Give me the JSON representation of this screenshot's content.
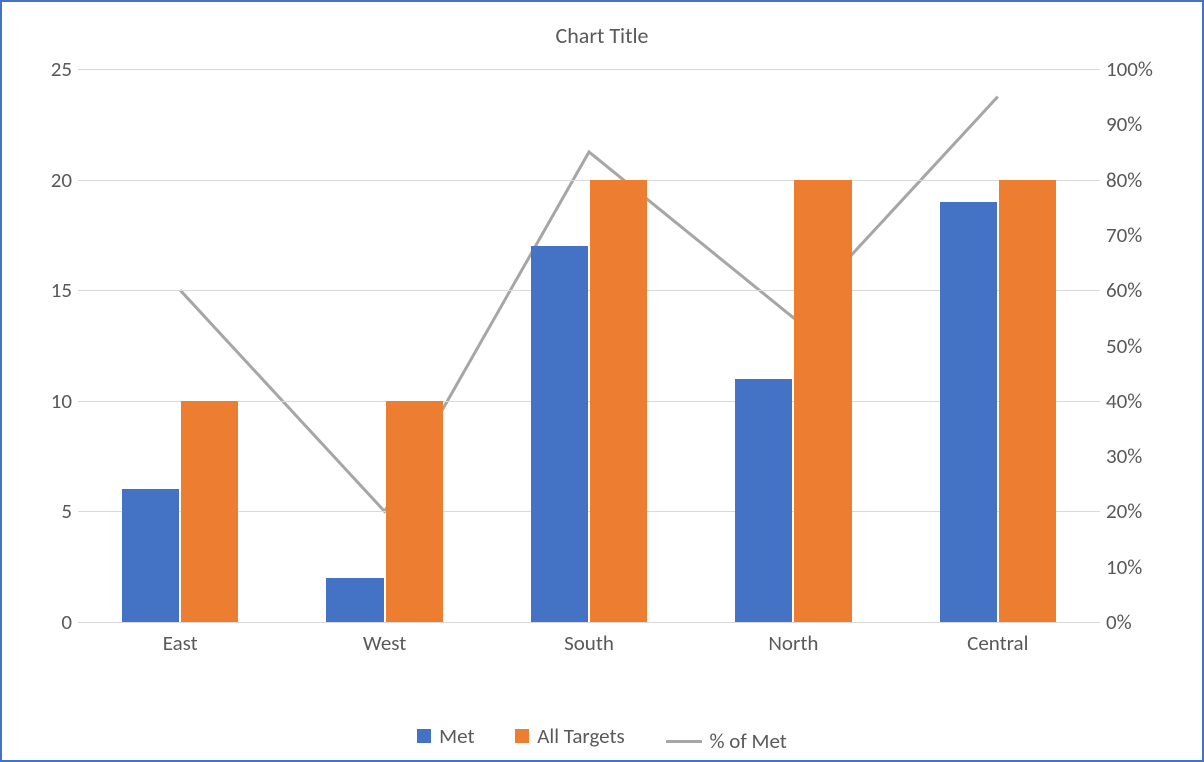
{
  "chart": {
    "type": "combo-bar-line",
    "title": "Chart Title",
    "title_fontsize": 22,
    "title_color": "#595959",
    "background_color": "#ffffff",
    "border_color": "#4472c4",
    "grid_color": "#d9d9d9",
    "axis_label_color": "#595959",
    "axis_label_fontsize": 21,
    "categories": [
      "East",
      "West",
      "South",
      "North",
      "Central"
    ],
    "series": {
      "met": {
        "label": "Met",
        "type": "bar",
        "color": "#4472c4",
        "values": [
          6,
          2,
          17,
          11,
          19
        ],
        "axis": "left",
        "bar_width_frac": 0.28
      },
      "all_targets": {
        "label": "All Targets",
        "type": "bar",
        "color": "#ed7d31",
        "values": [
          10,
          10,
          20,
          20,
          20
        ],
        "axis": "left",
        "bar_width_frac": 0.28
      },
      "pct_met": {
        "label": "% of Met",
        "type": "line",
        "color": "#a6a6a6",
        "line_width": 3,
        "values_pct": [
          60,
          20,
          85,
          55,
          95
        ],
        "axis": "right"
      }
    },
    "y_left": {
      "min": 0,
      "max": 25,
      "ticks": [
        0,
        5,
        10,
        15,
        20,
        25
      ]
    },
    "y_right": {
      "min": 0,
      "max": 100,
      "ticks_pct": [
        0,
        10,
        20,
        30,
        40,
        50,
        60,
        70,
        80,
        90,
        100
      ]
    },
    "legend": {
      "position": "bottom",
      "items": [
        {
          "key": "met",
          "label": "Met",
          "swatch_color": "#4472c4",
          "kind": "box"
        },
        {
          "key": "all_targets",
          "label": "All Targets",
          "swatch_color": "#ed7d31",
          "kind": "box"
        },
        {
          "key": "pct_met",
          "label": "% of Met",
          "swatch_color": "#a6a6a6",
          "kind": "line"
        }
      ]
    }
  }
}
